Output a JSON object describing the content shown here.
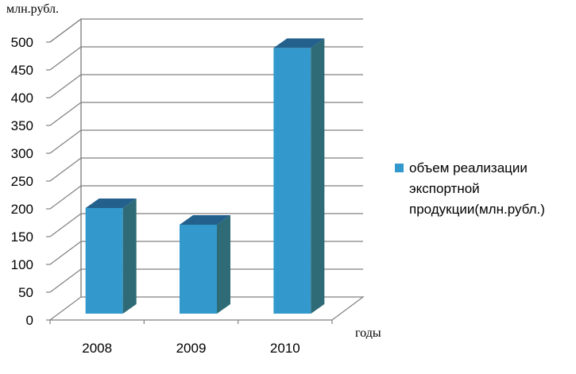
{
  "chart_data": {
    "type": "bar",
    "ylabel": "млн.рубл.",
    "xlabel": "годы",
    "categories": [
      "2008",
      "2009",
      "2010"
    ],
    "series": [
      {
        "name": "объем реализации экспортной продукции(млн.рубл.)",
        "values": [
          190,
          160,
          478
        ]
      }
    ],
    "ylim": [
      0,
      500
    ],
    "yticks": [
      "0",
      "50",
      "100",
      "150",
      "200",
      "250",
      "300",
      "350",
      "400",
      "450",
      "500"
    ],
    "grid": true,
    "legend": "right",
    "colors": {
      "bar_front": "#3399cc",
      "bar_side": "#2e6b76",
      "bar_top": "#24608c"
    }
  }
}
